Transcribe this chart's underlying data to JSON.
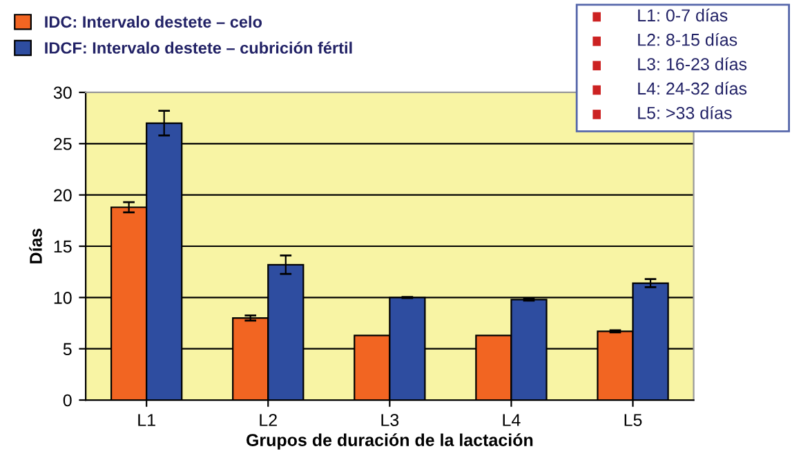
{
  "chart_data": {
    "type": "bar",
    "xlabel": "Grupos de duración de la lactación",
    "ylabel": "Días",
    "categories": [
      "L1",
      "L2",
      "L3",
      "L4",
      "L5"
    ],
    "series": [
      {
        "name": "IDC: Intervalo destete – celo",
        "color": "#f26522",
        "values": [
          18.8,
          8.0,
          6.3,
          6.3,
          6.7
        ],
        "errors": [
          0.5,
          0.25,
          null,
          null,
          0.1
        ]
      },
      {
        "name": "IDCF: Intervalo destete – cubrición fértil",
        "color": "#2e4da0",
        "values": [
          27.0,
          13.2,
          10.0,
          9.8,
          11.4
        ],
        "errors": [
          1.2,
          0.9,
          0.05,
          0.1,
          0.4
        ]
      }
    ],
    "ylim": [
      0,
      30
    ],
    "yticks": [
      0,
      5,
      10,
      15,
      20,
      25,
      30
    ],
    "grid": "y",
    "legend": "top left",
    "annotations": [
      "L1: 0-7 días",
      "L2: 8-15 días",
      "L3: 16-23 días",
      "L4: 24-32 días",
      "L5: >33 días"
    ]
  }
}
